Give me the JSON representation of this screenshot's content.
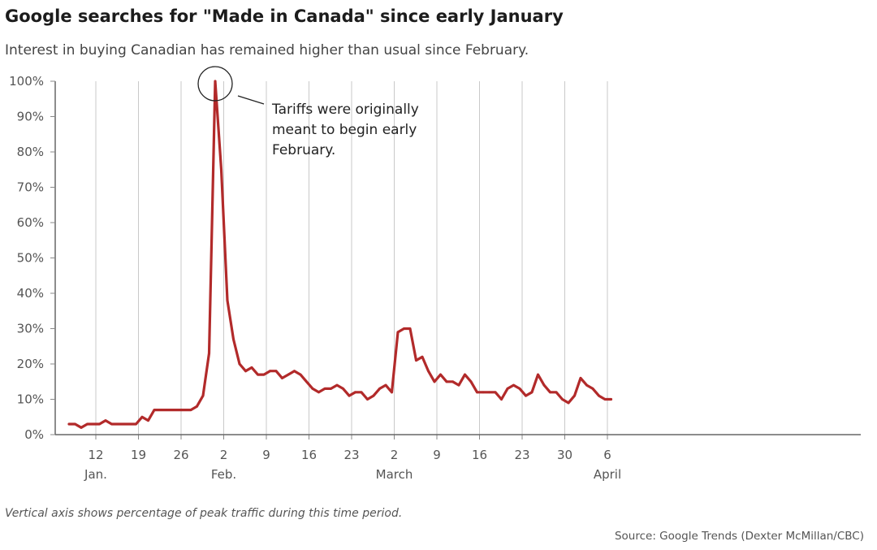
{
  "chart_data": {
    "type": "line",
    "title": "Google searches for \"Made in Canada\" since early January",
    "subtitle": "Interest in buying Canadian has remained higher than usual since February.",
    "xlabel": "",
    "ylabel": "",
    "ylim": [
      0,
      100
    ],
    "yticks": [
      "0%",
      "10%",
      "20%",
      "30%",
      "40%",
      "50%",
      "60%",
      "70%",
      "80%",
      "90%",
      "100%"
    ],
    "xticks": [
      {
        "day": 4,
        "label": "12",
        "month": "Jan."
      },
      {
        "day": 11,
        "label": "19",
        "month": ""
      },
      {
        "day": 18,
        "label": "26",
        "month": ""
      },
      {
        "day": 25,
        "label": "2",
        "month": "Feb."
      },
      {
        "day": 32,
        "label": "9",
        "month": ""
      },
      {
        "day": 39,
        "label": "16",
        "month": ""
      },
      {
        "day": 46,
        "label": "23",
        "month": ""
      },
      {
        "day": 53,
        "label": "2",
        "month": "March"
      },
      {
        "day": 60,
        "label": "9",
        "month": ""
      },
      {
        "day": 67,
        "label": "16",
        "month": ""
      },
      {
        "day": 74,
        "label": "23",
        "month": ""
      },
      {
        "day": 81,
        "label": "30",
        "month": ""
      },
      {
        "day": 88,
        "label": "6",
        "month": "April"
      }
    ],
    "grid": "vertical",
    "line_color": "#b22a2a",
    "series": [
      {
        "x": [
          "2025-01-09",
          "2025-01-10",
          "2025-01-11",
          "2025-01-12",
          "2025-01-13",
          "2025-01-14",
          "2025-01-15",
          "2025-01-16",
          "2025-01-17",
          "2025-01-18",
          "2025-01-19",
          "2025-01-20",
          "2025-01-21",
          "2025-01-22",
          "2025-01-23",
          "2025-01-24",
          "2025-01-25",
          "2025-01-26",
          "2025-01-27",
          "2025-01-28",
          "2025-01-29",
          "2025-01-30",
          "2025-01-31",
          "2025-02-01",
          "2025-02-02",
          "2025-02-03",
          "2025-02-04",
          "2025-02-05",
          "2025-02-06",
          "2025-02-07",
          "2025-02-08",
          "2025-02-09",
          "2025-02-10",
          "2025-02-11",
          "2025-02-12",
          "2025-02-13",
          "2025-02-14",
          "2025-02-15",
          "2025-02-16",
          "2025-02-17",
          "2025-02-18",
          "2025-02-19",
          "2025-02-20",
          "2025-02-21",
          "2025-02-22",
          "2025-02-23",
          "2025-02-24",
          "2025-02-25",
          "2025-02-26",
          "2025-02-27",
          "2025-02-28",
          "2025-03-01",
          "2025-03-02",
          "2025-03-03",
          "2025-03-04",
          "2025-03-05",
          "2025-03-06",
          "2025-03-07",
          "2025-03-08",
          "2025-03-09",
          "2025-03-10",
          "2025-03-11",
          "2025-03-12",
          "2025-03-13",
          "2025-03-14",
          "2025-03-15",
          "2025-03-16",
          "2025-03-17",
          "2025-03-18",
          "2025-03-19",
          "2025-03-20",
          "2025-03-21",
          "2025-03-22",
          "2025-03-23",
          "2025-03-24",
          "2025-03-25",
          "2025-03-26",
          "2025-03-27",
          "2025-03-28",
          "2025-03-29",
          "2025-03-30",
          "2025-03-31",
          "2025-04-01",
          "2025-04-02",
          "2025-04-03",
          "2025-04-04",
          "2025-04-05",
          "2025-04-06",
          "2025-04-07",
          "2025-04-08"
        ],
        "values": [
          3,
          3,
          2,
          3,
          3,
          3,
          4,
          3,
          3,
          3,
          3,
          3,
          5,
          4,
          7,
          7,
          7,
          7,
          7,
          7,
          7,
          8,
          11,
          23,
          100,
          75,
          38,
          27,
          20,
          18,
          19,
          17,
          17,
          18,
          18,
          16,
          17,
          18,
          17,
          15,
          13,
          12,
          13,
          13,
          14,
          13,
          11,
          12,
          12,
          10,
          11,
          13,
          14,
          12,
          29,
          30,
          30,
          21,
          22,
          18,
          15,
          17,
          15,
          15,
          14,
          17,
          15,
          12,
          12,
          12,
          12,
          10,
          13,
          14,
          13,
          11,
          12,
          17,
          14,
          12,
          12,
          10,
          9,
          11,
          16,
          14,
          13,
          11,
          10,
          10
        ]
      }
    ],
    "annotation": {
      "text_lines": [
        "Tariffs were originally",
        "meant to begin early",
        "February."
      ],
      "target": "2025-02-02"
    }
  },
  "footer": {
    "note": "Vertical axis shows percentage of peak traffic during this time period.",
    "source": "Source: Google Trends (Dexter McMillan/CBC)"
  }
}
